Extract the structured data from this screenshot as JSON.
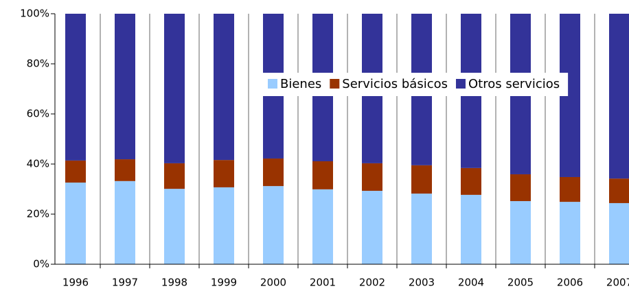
{
  "chart_data": {
    "type": "stacked_bar",
    "categories": [
      "1996",
      "1997",
      "1998",
      "1999",
      "2000",
      "2001",
      "2002",
      "2003",
      "2004",
      "2005",
      "2006",
      "2007"
    ],
    "series": [
      {
        "name": "Bienes",
        "color": "#99ccff",
        "values": [
          32.6,
          33.2,
          30.1,
          30.7,
          31.2,
          29.9,
          29.3,
          28.2,
          27.7,
          25.2,
          24.9,
          24.4
        ]
      },
      {
        "name": "Servicios básicos",
        "color": "#993300",
        "values": [
          8.8,
          8.7,
          10.2,
          10.9,
          11.0,
          11.2,
          11.0,
          11.3,
          10.7,
          10.7,
          9.9,
          9.8
        ]
      },
      {
        "name": "Otros servicios",
        "color": "#333399",
        "values": [
          58.6,
          58.1,
          59.7,
          58.4,
          57.8,
          58.9,
          59.7,
          60.5,
          61.6,
          64.1,
          65.2,
          65.8
        ]
      }
    ],
    "ylim": [
      0,
      100
    ],
    "yticks": [
      {
        "value": 0,
        "label": "0%"
      },
      {
        "value": 20,
        "label": "20%"
      },
      {
        "value": 40,
        "label": "40%"
      },
      {
        "value": 60,
        "label": "60%"
      },
      {
        "value": 80,
        "label": "80%"
      },
      {
        "value": 100,
        "label": "100%"
      }
    ],
    "grid": true,
    "legend": "upper right"
  }
}
